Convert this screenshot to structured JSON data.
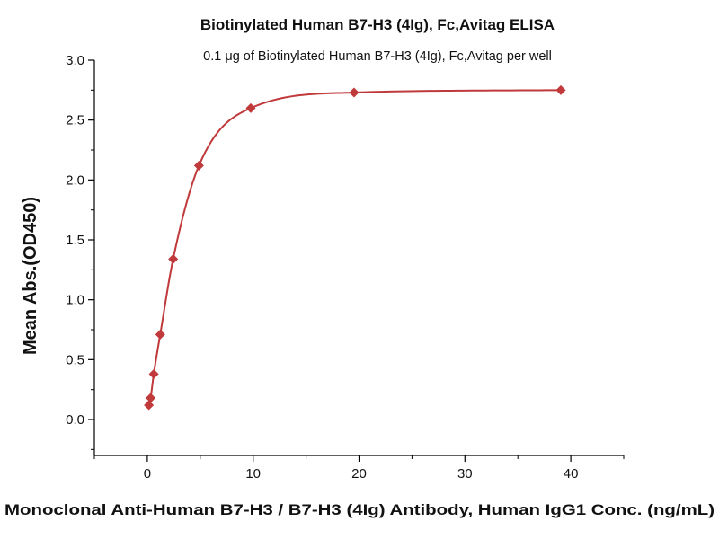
{
  "chart_data": {
    "type": "scatter",
    "title": "Biotinylated Human B7-H3 (4Ig), Fc,Avitag ELISA",
    "subtitle": "0.1 μg of Biotinylated Human B7-H3 (4Ig), Fc,Avitag per well",
    "xlabel": "Monoclonal Anti-Human B7-H3 / B7-H3 (4Ig) Antibody, Human IgG1 Conc. (ng/mL)",
    "ylabel": "Mean Abs.(OD450)",
    "xlim": [
      -5,
      45
    ],
    "ylim": [
      -0.3,
      3.0
    ],
    "x_ticks": [
      0,
      10,
      20,
      30,
      40
    ],
    "y_ticks": [
      0.0,
      0.5,
      1.0,
      1.5,
      2.0,
      2.5,
      3.0
    ],
    "x_tick_labels": [
      "0",
      "10",
      "20",
      "30",
      "40"
    ],
    "y_tick_labels": [
      "0.0",
      "0.5",
      "1.0",
      "1.5",
      "2.0",
      "2.5",
      "3.0"
    ],
    "grid": false,
    "legend": false,
    "series": [
      {
        "x": [
          0.15,
          0.31,
          0.61,
          1.22,
          2.44,
          4.88,
          9.77,
          19.53,
          39.06
        ],
        "y": [
          0.12,
          0.18,
          0.38,
          0.71,
          1.34,
          2.12,
          2.6,
          2.73,
          2.75
        ],
        "color": "#c0393b",
        "marker": "diamond",
        "fit": "four-parameter logistic curve"
      }
    ]
  }
}
